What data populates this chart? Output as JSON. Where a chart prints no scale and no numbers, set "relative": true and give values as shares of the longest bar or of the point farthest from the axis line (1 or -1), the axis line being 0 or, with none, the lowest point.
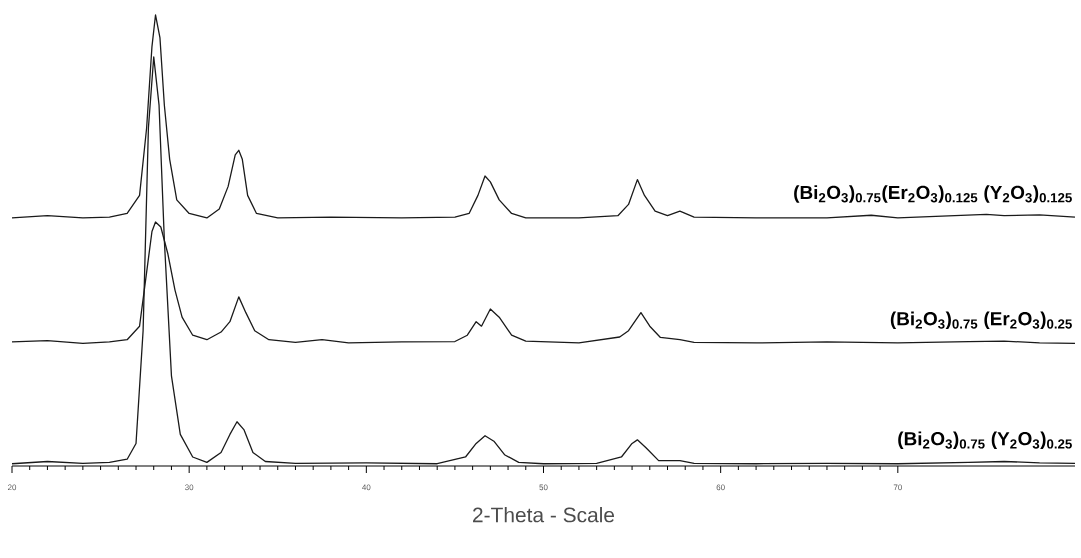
{
  "chart_data": {
    "type": "line",
    "relative": true,
    "xlabel": "2-Theta - Scale",
    "xlim": [
      20,
      80
    ],
    "xticks": [
      20,
      30,
      40,
      50,
      60,
      70
    ],
    "series": [
      {
        "name": "(Bi$_{2}$O$_{3}$)$_{0.75}$(Er$_{2}$O$_{3}$)$_{0.125}$ (Y$_{2}$O$_{3}$)$_{0.125}$",
        "color": "#1a1a1a",
        "x": [
          20,
          22,
          24,
          25.5,
          26.5,
          27.2,
          27.6,
          27.9,
          28.1,
          28.35,
          28.6,
          28.9,
          29.3,
          30,
          31,
          31.7,
          32.2,
          32.6,
          32.8,
          33.0,
          33.3,
          33.8,
          35,
          38,
          42,
          45,
          45.8,
          46.3,
          46.7,
          47.0,
          47.5,
          48.2,
          49,
          52,
          54.2,
          54.8,
          55.3,
          55.7,
          56.3,
          57,
          57.7,
          58.5,
          62,
          66,
          68.5,
          70,
          75,
          76,
          78,
          80
        ],
        "values": [
          0.55,
          0.555,
          0.55,
          0.552,
          0.56,
          0.6,
          0.75,
          0.93,
          1.0,
          0.95,
          0.8,
          0.68,
          0.59,
          0.56,
          0.55,
          0.57,
          0.62,
          0.69,
          0.7,
          0.68,
          0.6,
          0.56,
          0.55,
          0.552,
          0.55,
          0.552,
          0.56,
          0.6,
          0.643,
          0.63,
          0.59,
          0.56,
          0.55,
          0.55,
          0.555,
          0.58,
          0.635,
          0.6,
          0.565,
          0.555,
          0.565,
          0.552,
          0.55,
          0.55,
          0.556,
          0.55,
          0.558,
          0.555,
          0.557,
          0.552
        ]
      },
      {
        "name": "(Bi$_{2}$O$_{3}$)$_{0.75}$ (Er$_{2}$O$_{3}$)$_{0.25}$",
        "color": "#1a1a1a",
        "x": [
          20,
          22,
          24,
          25.5,
          26.5,
          27.2,
          27.6,
          27.9,
          28.1,
          28.4,
          28.8,
          29.2,
          29.6,
          30.2,
          31,
          31.8,
          32.3,
          32.8,
          33.2,
          33.7,
          34.5,
          36,
          37.5,
          39,
          42,
          45,
          45.7,
          46.2,
          46.5,
          47.0,
          47.5,
          48.2,
          49,
          52,
          54.3,
          54.8,
          55.5,
          56,
          56.6,
          57.7,
          58.5,
          62,
          66,
          70,
          74,
          76,
          78,
          80
        ],
        "values": [
          0.275,
          0.278,
          0.272,
          0.275,
          0.28,
          0.31,
          0.43,
          0.52,
          0.541,
          0.53,
          0.47,
          0.39,
          0.33,
          0.29,
          0.28,
          0.297,
          0.32,
          0.375,
          0.34,
          0.3,
          0.28,
          0.274,
          0.28,
          0.273,
          0.275,
          0.276,
          0.29,
          0.32,
          0.31,
          0.348,
          0.33,
          0.29,
          0.277,
          0.273,
          0.286,
          0.3,
          0.34,
          0.31,
          0.285,
          0.28,
          0.274,
          0.273,
          0.275,
          0.273,
          0.276,
          0.277,
          0.273,
          0.272
        ]
      },
      {
        "name": "(Bi$_{2}$O$_{3}$)$_{0.75}$ (Y$_{2}$O$_{3}$)$_{0.25}$",
        "color": "#1a1a1a",
        "x": [
          20,
          22,
          24,
          25.5,
          26.5,
          27.0,
          27.4,
          27.7,
          28.0,
          28.3,
          28.6,
          29.0,
          29.5,
          30.2,
          31,
          31.8,
          32.3,
          32.7,
          33.1,
          33.6,
          34.3,
          36,
          40,
          44,
          45.6,
          46.2,
          46.7,
          47.2,
          47.8,
          48.6,
          50,
          53,
          54.4,
          55.0,
          55.3,
          55.8,
          56.5,
          57.7,
          58.5,
          62,
          66,
          70,
          74,
          76,
          78,
          80
        ],
        "values": [
          0.005,
          0.01,
          0.006,
          0.008,
          0.015,
          0.05,
          0.3,
          0.75,
          0.907,
          0.8,
          0.5,
          0.2,
          0.07,
          0.02,
          0.008,
          0.03,
          0.07,
          0.098,
          0.08,
          0.03,
          0.01,
          0.006,
          0.007,
          0.005,
          0.02,
          0.05,
          0.067,
          0.055,
          0.025,
          0.008,
          0.005,
          0.006,
          0.02,
          0.05,
          0.058,
          0.04,
          0.012,
          0.012,
          0.006,
          0.005,
          0.006,
          0.005,
          0.008,
          0.01,
          0.007,
          0.006
        ]
      }
    ]
  }
}
